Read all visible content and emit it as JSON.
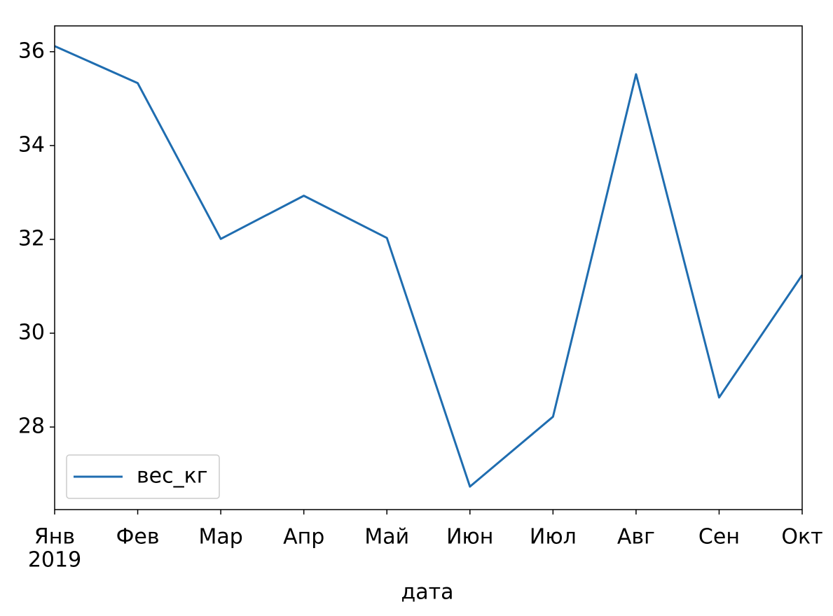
{
  "chart_data": {
    "type": "line",
    "categories": [
      "Янв",
      "Фев",
      "Мар",
      "Апр",
      "Май",
      "Июн",
      "Июл",
      "Авг",
      "Сен",
      "Окт"
    ],
    "year_label": "2019",
    "xlabel": "дата",
    "series": [
      {
        "name": "вес_кг",
        "color": "#1f6db0",
        "values": [
          36.12,
          35.33,
          32.01,
          32.93,
          32.03,
          26.73,
          28.22,
          35.52,
          28.63,
          31.24
        ]
      }
    ],
    "ylim": [
      26.24,
      36.55
    ],
    "yticks": [
      28,
      30,
      32,
      34,
      36
    ],
    "legend": "lower left",
    "grid": false
  }
}
